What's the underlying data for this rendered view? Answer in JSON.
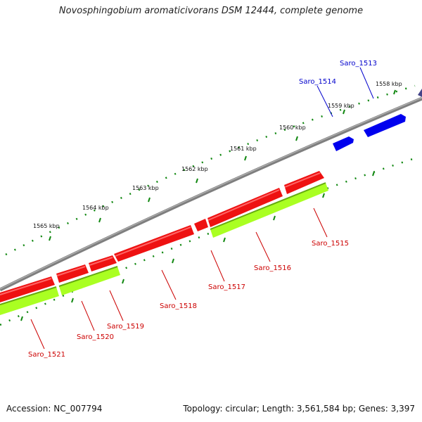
{
  "header": {
    "title": "Novosphingobium aromaticivorans DSM 12444, complete genome"
  },
  "footer": {
    "accession": "Accession: NC_007794",
    "summary": "Topology: circular; Length: 3,561,584 bp; Genes: 3,397"
  },
  "colors": {
    "backbone": "#7a7a7a",
    "forward_gene": "#0000ee",
    "reverse_gene": "#ee0000",
    "reverse_gene_light": "#ff5555",
    "feature_green": "#aaff22",
    "feature_green_dark": "#66aa11",
    "tick_green": "#118811",
    "label_blue": "#0000cc",
    "label_red": "#cc0000"
  },
  "scale_labels": [
    "1558 kbp",
    "1559 kbp",
    "1560 kbp",
    "1561 kbp",
    "1562 kbp",
    "1563 kbp",
    "1564 kbp",
    "1565 kbp"
  ],
  "genes": {
    "forward": [
      "Saro_1513",
      "Saro_1514"
    ],
    "reverse": [
      "Saro_1515",
      "Saro_1516",
      "Saro_1517",
      "Saro_1518",
      "Saro_1519",
      "Saro_1520",
      "Saro_1521"
    ]
  }
}
